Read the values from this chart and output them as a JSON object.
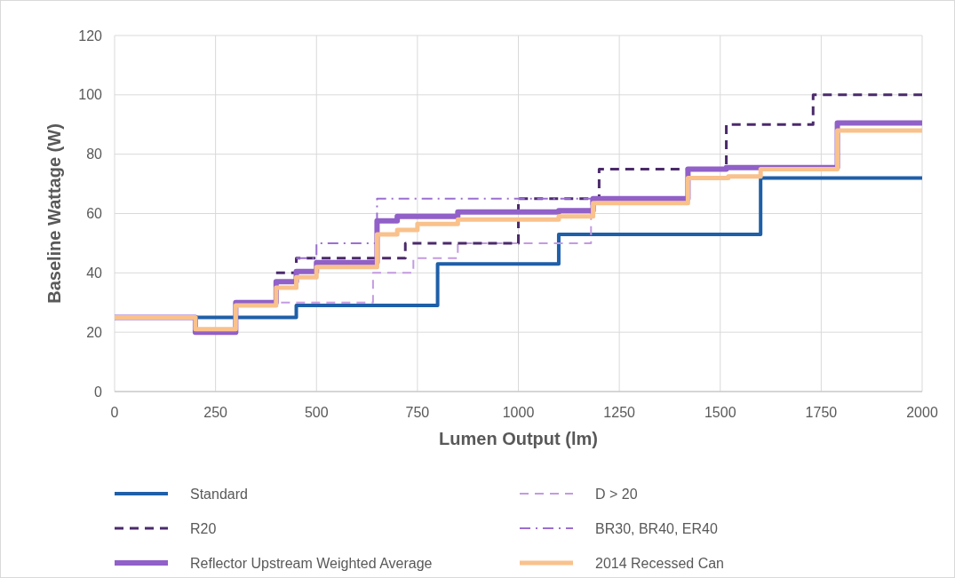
{
  "chart_data": {
    "type": "step",
    "xlabel": "Lumen Output (lm)",
    "ylabel": "Baseline Wattage (W)",
    "xlim": [
      0,
      2000
    ],
    "ylim": [
      0,
      120
    ],
    "xticks": [
      0,
      250,
      500,
      750,
      1000,
      1250,
      1500,
      1750,
      2000
    ],
    "yticks": [
      0,
      20,
      40,
      60,
      80,
      100,
      120
    ],
    "grid": true,
    "legend": "bottom",
    "series": [
      {
        "name": "Standard",
        "color": "#1f5fa8",
        "line_style": "solid",
        "x": [
          200,
          450,
          800,
          1100,
          1600,
          2000
        ],
        "values": [
          25,
          29,
          43,
          53,
          72,
          72
        ]
      },
      {
        "name": "D > 20",
        "color": "#c39be0",
        "line_style": "dashed",
        "x": [
          300,
          640,
          740,
          850,
          1180,
          1200
        ],
        "values": [
          30,
          40,
          45,
          50,
          65,
          65
        ]
      },
      {
        "name": "R20",
        "color": "#4b2a6b",
        "line_style": "dashed",
        "x": [
          400,
          450,
          720,
          1000,
          1200,
          1515,
          1730,
          2000
        ],
        "values": [
          40,
          45,
          50,
          65,
          75,
          90,
          100,
          100
        ]
      },
      {
        "name": "BR30, BR40, ER40",
        "color": "#9a6fd0",
        "line_style": "dashdot",
        "x": [
          450,
          500,
          650,
          1185
        ],
        "values": [
          45,
          50,
          65,
          65
        ]
      },
      {
        "name": "Reflector Upstream Weighted Average",
        "color": "#9160c8",
        "line_style": "solid",
        "x": [
          0,
          200,
          300,
          400,
          450,
          500,
          650,
          700,
          850,
          1100,
          1185,
          1420,
          1515,
          1790,
          2000
        ],
        "values": [
          25,
          20,
          30,
          37,
          40.5,
          43.5,
          57.5,
          59,
          60.5,
          61,
          65,
          75,
          75.5,
          90.5,
          90.5
        ]
      },
      {
        "name": "2014 Recessed Can",
        "color": "#f9c18c",
        "line_style": "solid",
        "x": [
          0,
          200,
          300,
          400,
          450,
          500,
          650,
          700,
          750,
          850,
          1100,
          1185,
          1420,
          1520,
          1600,
          1790,
          2000
        ],
        "values": [
          25,
          21,
          29,
          35,
          38.5,
          42,
          53,
          54.5,
          56.5,
          58,
          59,
          63.5,
          72,
          72.5,
          75,
          88,
          88
        ]
      }
    ]
  }
}
